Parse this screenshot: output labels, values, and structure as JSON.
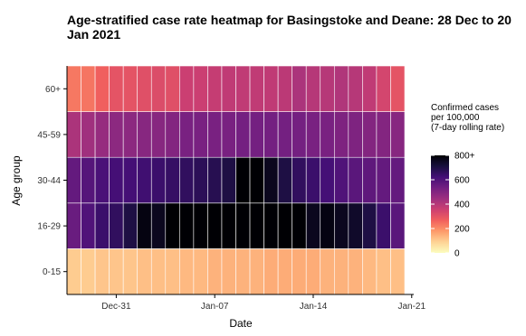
{
  "chart_data": {
    "type": "heatmap",
    "title": "Age-stratified case rate heatmap for Basingstoke and Deane: 28 Dec to 20 Jan 2021",
    "xlabel": "Date",
    "ylabel": "Age group",
    "x": [
      "2020-12-28",
      "2020-12-29",
      "2020-12-30",
      "2020-12-31",
      "2021-01-01",
      "2021-01-02",
      "2021-01-03",
      "2021-01-04",
      "2021-01-05",
      "2021-01-06",
      "2021-01-07",
      "2021-01-08",
      "2021-01-09",
      "2021-01-10",
      "2021-01-11",
      "2021-01-12",
      "2021-01-13",
      "2021-01-14",
      "2021-01-15",
      "2021-01-16",
      "2021-01-17",
      "2021-01-18",
      "2021-01-19",
      "2021-01-20"
    ],
    "x_ticks": [
      {
        "label": "Dec-31",
        "date": "2020-12-31"
      },
      {
        "label": "Jan-07",
        "date": "2021-01-07"
      },
      {
        "label": "Jan-14",
        "date": "2021-01-14"
      },
      {
        "label": "Jan-21",
        "date": "2021-01-21"
      }
    ],
    "y_categories": [
      "0-15",
      "16-29",
      "30-44",
      "45-59",
      "60+"
    ],
    "values": {
      "60+": [
        230,
        235,
        270,
        300,
        300,
        310,
        320,
        310,
        360,
        360,
        370,
        380,
        380,
        380,
        380,
        390,
        420,
        400,
        400,
        410,
        400,
        380,
        340,
        300
      ],
      "45-59": [
        420,
        440,
        460,
        480,
        480,
        490,
        490,
        500,
        520,
        520,
        520,
        520,
        530,
        530,
        530,
        530,
        530,
        520,
        520,
        510,
        510,
        500,
        500,
        490
      ],
      "30-44": [
        560,
        590,
        610,
        620,
        620,
        630,
        640,
        650,
        660,
        670,
        680,
        700,
        800,
        800,
        760,
        700,
        660,
        640,
        620,
        600,
        580,
        570,
        560,
        560
      ],
      "16-29": [
        550,
        600,
        640,
        660,
        700,
        780,
        760,
        800,
        800,
        800,
        800,
        800,
        800,
        800,
        800,
        800,
        800,
        760,
        780,
        760,
        740,
        700,
        640,
        580
      ],
      "0-15": [
        100,
        100,
        110,
        110,
        110,
        120,
        120,
        120,
        130,
        130,
        140,
        140,
        140,
        140,
        150,
        150,
        150,
        150,
        140,
        140,
        140,
        130,
        120,
        120
      ]
    },
    "color_range": [
      0,
      800
    ],
    "color_scale": [
      "#fcfdbf",
      "#fed395",
      "#fd9a6a",
      "#f1605d",
      "#cd4071",
      "#9e2f7f",
      "#721f81",
      "#440f76",
      "#180f3d",
      "#000004"
    ],
    "legend": {
      "title": [
        "Confirmed cases",
        "per 100,000",
        "(7-day rolling rate)"
      ],
      "ticks": [
        "0",
        "200",
        "400",
        "600",
        "800+"
      ],
      "tick_values": [
        0,
        200,
        400,
        600,
        800
      ],
      "placement": "right"
    }
  }
}
